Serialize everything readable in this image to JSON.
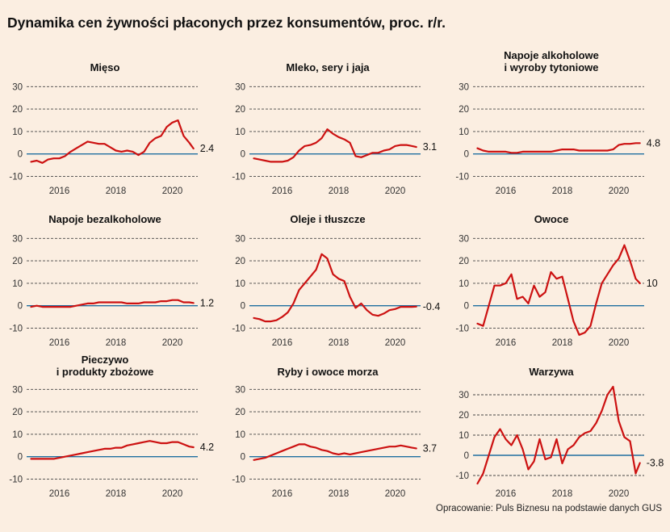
{
  "title": "Dynamika cen żywności płaconych przez konsumentów, proc. r/r.",
  "source_note": "Opracowanie: Puls Biznesu na podstawie danych GUS",
  "colors": {
    "background": "#fbeee1",
    "line": "#cc1111",
    "zero_line": "#1f6fa0",
    "grid": "#444444"
  },
  "chart_data": [
    {
      "type": "line",
      "title": "Mięso",
      "x_ticks": [
        "2016",
        "2018",
        "2020"
      ],
      "y_ticks": [
        -10,
        0,
        10,
        20,
        30
      ],
      "ylim": [
        -12,
        33
      ],
      "xlim": [
        2014.9,
        2020.9
      ],
      "last_value_label": "2.4",
      "x": [
        2015.0,
        2015.2,
        2015.4,
        2015.6,
        2015.8,
        2016.0,
        2016.2,
        2016.4,
        2016.6,
        2016.8,
        2017.0,
        2017.2,
        2017.4,
        2017.6,
        2017.8,
        2018.0,
        2018.2,
        2018.4,
        2018.6,
        2018.8,
        2019.0,
        2019.2,
        2019.4,
        2019.6,
        2019.8,
        2020.0,
        2020.2,
        2020.4,
        2020.6,
        2020.75
      ],
      "values": [
        -3.5,
        -3.0,
        -4.0,
        -2.5,
        -2.0,
        -2.0,
        -1.0,
        1.0,
        2.5,
        4.0,
        5.5,
        5.0,
        4.5,
        4.5,
        3.0,
        1.5,
        1.0,
        1.5,
        1.0,
        -0.5,
        1.0,
        5.0,
        7.0,
        8.0,
        12.0,
        14.0,
        15.0,
        8.0,
        5.0,
        2.4
      ]
    },
    {
      "type": "line",
      "title": "Mleko, sery i jaja",
      "x_ticks": [
        "2016",
        "2018",
        "2020"
      ],
      "y_ticks": [
        -10,
        0,
        10,
        20,
        30
      ],
      "ylim": [
        -12,
        33
      ],
      "xlim": [
        2014.9,
        2020.9
      ],
      "last_value_label": "3.1",
      "x": [
        2015.0,
        2015.2,
        2015.4,
        2015.6,
        2015.8,
        2016.0,
        2016.2,
        2016.4,
        2016.6,
        2016.8,
        2017.0,
        2017.2,
        2017.4,
        2017.6,
        2017.8,
        2018.0,
        2018.2,
        2018.4,
        2018.6,
        2018.8,
        2019.0,
        2019.2,
        2019.4,
        2019.6,
        2019.8,
        2020.0,
        2020.2,
        2020.4,
        2020.6,
        2020.75
      ],
      "values": [
        -2.0,
        -2.5,
        -3.0,
        -3.5,
        -3.5,
        -3.5,
        -3.0,
        -1.5,
        1.5,
        3.5,
        4.0,
        5.0,
        7.0,
        11.0,
        9.0,
        7.5,
        6.5,
        5.0,
        -1.0,
        -1.5,
        -0.5,
        0.5,
        0.5,
        1.5,
        2.0,
        3.5,
        4.0,
        4.0,
        3.5,
        3.1
      ]
    },
    {
      "type": "line",
      "title": "Napoje alkoholowe\ni wyroby tytoniowe",
      "x_ticks": [
        "2016",
        "2018",
        "2020"
      ],
      "y_ticks": [
        -10,
        0,
        10,
        20,
        30
      ],
      "ylim": [
        -12,
        33
      ],
      "xlim": [
        2014.9,
        2020.9
      ],
      "last_value_label": "4.8",
      "x": [
        2015.0,
        2015.2,
        2015.4,
        2015.6,
        2015.8,
        2016.0,
        2016.2,
        2016.4,
        2016.6,
        2016.8,
        2017.0,
        2017.2,
        2017.4,
        2017.6,
        2017.8,
        2018.0,
        2018.2,
        2018.4,
        2018.6,
        2018.8,
        2019.0,
        2019.2,
        2019.4,
        2019.6,
        2019.8,
        2020.0,
        2020.2,
        2020.4,
        2020.6,
        2020.75
      ],
      "values": [
        2.5,
        1.5,
        1.0,
        1.0,
        1.0,
        1.0,
        0.5,
        0.5,
        1.0,
        1.0,
        1.0,
        1.0,
        1.0,
        1.0,
        1.5,
        2.0,
        2.0,
        2.0,
        1.5,
        1.5,
        1.5,
        1.5,
        1.5,
        1.5,
        2.0,
        4.0,
        4.5,
        4.5,
        4.8,
        4.8
      ]
    },
    {
      "type": "line",
      "title": "Napoje bezalkoholowe",
      "x_ticks": [
        "2016",
        "2018",
        "2020"
      ],
      "y_ticks": [
        -10,
        0,
        10,
        20,
        30
      ],
      "ylim": [
        -12,
        33
      ],
      "xlim": [
        2014.9,
        2020.9
      ],
      "last_value_label": "1.2",
      "x": [
        2015.0,
        2015.2,
        2015.4,
        2015.6,
        2015.8,
        2016.0,
        2016.2,
        2016.4,
        2016.6,
        2016.8,
        2017.0,
        2017.2,
        2017.4,
        2017.6,
        2017.8,
        2018.0,
        2018.2,
        2018.4,
        2018.6,
        2018.8,
        2019.0,
        2019.2,
        2019.4,
        2019.6,
        2019.8,
        2020.0,
        2020.2,
        2020.4,
        2020.6,
        2020.75
      ],
      "values": [
        -0.5,
        0.0,
        -0.5,
        -0.5,
        -0.5,
        -0.5,
        -0.5,
        -0.5,
        0.0,
        0.5,
        1.0,
        1.0,
        1.5,
        1.5,
        1.5,
        1.5,
        1.5,
        1.0,
        1.0,
        1.0,
        1.5,
        1.5,
        1.5,
        2.0,
        2.0,
        2.5,
        2.5,
        1.5,
        1.5,
        1.2
      ]
    },
    {
      "type": "line",
      "title": "Oleje i tłuszcze",
      "x_ticks": [
        "2016",
        "2018",
        "2020"
      ],
      "y_ticks": [
        -10,
        0,
        10,
        20,
        30
      ],
      "ylim": [
        -12,
        33
      ],
      "xlim": [
        2014.9,
        2020.9
      ],
      "last_value_label": "-0.4",
      "x": [
        2015.0,
        2015.2,
        2015.4,
        2015.6,
        2015.8,
        2016.0,
        2016.2,
        2016.4,
        2016.6,
        2016.8,
        2017.0,
        2017.2,
        2017.4,
        2017.6,
        2017.8,
        2018.0,
        2018.2,
        2018.4,
        2018.6,
        2018.8,
        2019.0,
        2019.2,
        2019.4,
        2019.6,
        2019.8,
        2020.0,
        2020.2,
        2020.4,
        2020.6,
        2020.75
      ],
      "values": [
        -5.5,
        -6.0,
        -7.0,
        -7.0,
        -6.5,
        -5.0,
        -3.0,
        1.0,
        7.0,
        10.0,
        13.0,
        16.0,
        23.0,
        21.0,
        14.0,
        12.0,
        11.0,
        4.0,
        -1.0,
        1.0,
        -2.0,
        -4.0,
        -4.5,
        -3.5,
        -2.0,
        -1.5,
        -0.5,
        -0.5,
        -0.5,
        -0.4
      ]
    },
    {
      "type": "line",
      "title": "Owoce",
      "x_ticks": [
        "2016",
        "2018",
        "2020"
      ],
      "y_ticks": [
        -10,
        0,
        10,
        20,
        30
      ],
      "ylim": [
        -12,
        33
      ],
      "xlim": [
        2014.9,
        2020.9
      ],
      "last_value_label": "10",
      "x": [
        2015.0,
        2015.2,
        2015.4,
        2015.6,
        2015.8,
        2016.0,
        2016.2,
        2016.4,
        2016.6,
        2016.8,
        2017.0,
        2017.2,
        2017.4,
        2017.6,
        2017.8,
        2018.0,
        2018.2,
        2018.4,
        2018.6,
        2018.8,
        2019.0,
        2019.2,
        2019.4,
        2019.6,
        2019.8,
        2020.0,
        2020.2,
        2020.4,
        2020.6,
        2020.75
      ],
      "values": [
        -8.0,
        -9.0,
        0.0,
        9.0,
        9.0,
        10.0,
        14.0,
        3.0,
        4.0,
        1.0,
        9.0,
        4.0,
        6.0,
        15.0,
        12.0,
        13.0,
        3.0,
        -7.0,
        -13.0,
        -12.0,
        -9.0,
        1.0,
        10.0,
        14.0,
        18.0,
        21.0,
        27.0,
        20.0,
        12.0,
        10.0
      ]
    },
    {
      "type": "line",
      "title": "Pieczywo\ni produkty zbożowe",
      "x_ticks": [
        "2016",
        "2018",
        "2020"
      ],
      "y_ticks": [
        -10,
        0,
        10,
        20,
        30
      ],
      "ylim": [
        -12,
        33
      ],
      "xlim": [
        2014.9,
        2020.9
      ],
      "last_value_label": "4.2",
      "x": [
        2015.0,
        2015.2,
        2015.4,
        2015.6,
        2015.8,
        2016.0,
        2016.2,
        2016.4,
        2016.6,
        2016.8,
        2017.0,
        2017.2,
        2017.4,
        2017.6,
        2017.8,
        2018.0,
        2018.2,
        2018.4,
        2018.6,
        2018.8,
        2019.0,
        2019.2,
        2019.4,
        2019.6,
        2019.8,
        2020.0,
        2020.2,
        2020.4,
        2020.6,
        2020.75
      ],
      "values": [
        -1.0,
        -1.0,
        -1.0,
        -1.0,
        -1.0,
        -0.5,
        0.0,
        0.5,
        1.0,
        1.5,
        2.0,
        2.5,
        3.0,
        3.5,
        3.5,
        4.0,
        4.0,
        5.0,
        5.5,
        6.0,
        6.5,
        7.0,
        6.5,
        6.0,
        6.0,
        6.5,
        6.5,
        5.5,
        4.5,
        4.2
      ]
    },
    {
      "type": "line",
      "title": "Ryby i owoce morza",
      "x_ticks": [
        "2016",
        "2018",
        "2020"
      ],
      "y_ticks": [
        -10,
        0,
        10,
        20,
        30
      ],
      "ylim": [
        -12,
        33
      ],
      "xlim": [
        2014.9,
        2020.9
      ],
      "last_value_label": "3.7",
      "x": [
        2015.0,
        2015.2,
        2015.4,
        2015.6,
        2015.8,
        2016.0,
        2016.2,
        2016.4,
        2016.6,
        2016.8,
        2017.0,
        2017.2,
        2017.4,
        2017.6,
        2017.8,
        2018.0,
        2018.2,
        2018.4,
        2018.6,
        2018.8,
        2019.0,
        2019.2,
        2019.4,
        2019.6,
        2019.8,
        2020.0,
        2020.2,
        2020.4,
        2020.6,
        2020.75
      ],
      "values": [
        -1.5,
        -1.0,
        -0.5,
        0.5,
        1.5,
        2.5,
        3.5,
        4.5,
        5.5,
        5.5,
        4.5,
        4.0,
        3.0,
        2.5,
        1.5,
        1.0,
        1.5,
        1.0,
        1.5,
        2.0,
        2.5,
        3.0,
        3.5,
        4.0,
        4.5,
        4.5,
        5.0,
        4.5,
        4.0,
        3.7
      ]
    },
    {
      "type": "line",
      "title": "Warzywa",
      "x_ticks": [
        "2016",
        "2018",
        "2020"
      ],
      "y_ticks": [
        -10,
        0,
        10,
        20,
        30
      ],
      "ylim": [
        -14,
        36
      ],
      "xlim": [
        2014.9,
        2020.9
      ],
      "last_value_label": "-3.8",
      "x": [
        2015.0,
        2015.2,
        2015.4,
        2015.6,
        2015.8,
        2016.0,
        2016.2,
        2016.4,
        2016.6,
        2016.8,
        2017.0,
        2017.2,
        2017.4,
        2017.6,
        2017.8,
        2018.0,
        2018.2,
        2018.4,
        2018.6,
        2018.8,
        2019.0,
        2019.2,
        2019.4,
        2019.6,
        2019.8,
        2020.0,
        2020.2,
        2020.4,
        2020.6,
        2020.75
      ],
      "values": [
        -14.0,
        -9.0,
        0.0,
        9.0,
        13.0,
        8.0,
        5.0,
        10.0,
        3.0,
        -7.0,
        -3.0,
        8.0,
        -2.0,
        -1.0,
        8.0,
        -4.0,
        3.0,
        5.0,
        9.0,
        11.0,
        12.0,
        16.0,
        22.0,
        30.0,
        34.0,
        17.0,
        9.0,
        7.0,
        -9.0,
        -3.8
      ]
    }
  ]
}
